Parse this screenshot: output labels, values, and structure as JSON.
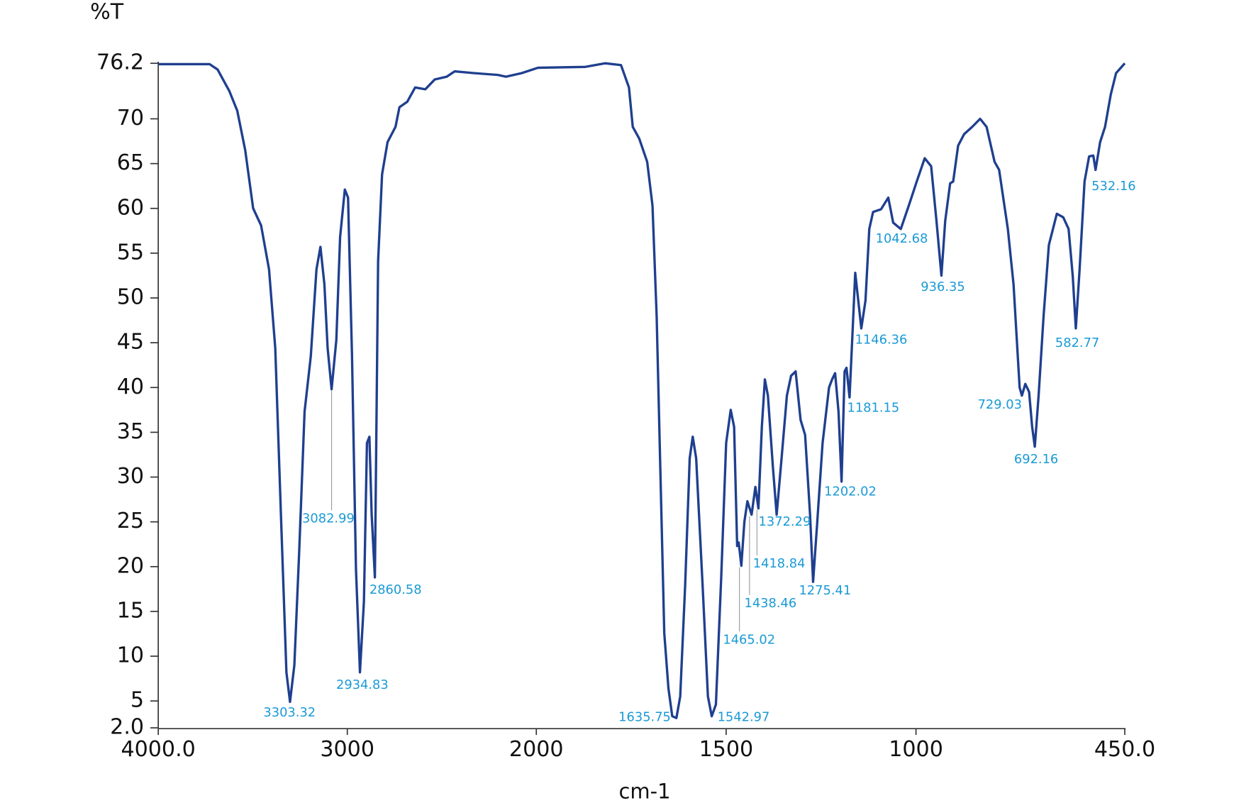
{
  "chart_data": {
    "type": "line",
    "y_axis_label": "%T",
    "x_axis_label": "cm-1",
    "xlim": [
      4000,
      450
    ],
    "ylim": [
      2,
      76.2
    ],
    "xticks": [
      {
        "value": 4000,
        "label": "4000.0"
      },
      3000,
      2000,
      1500,
      1000,
      {
        "value": 450,
        "label": "450.0"
      }
    ],
    "yticks": [
      {
        "value": 2,
        "label": "2.0"
      },
      5,
      10,
      15,
      20,
      25,
      30,
      35,
      40,
      45,
      50,
      55,
      60,
      65,
      70,
      76.2
    ],
    "series": [
      {
        "color": "#1f3f8f",
        "x": [
          4000,
          3728,
          3686,
          3624,
          3582,
          3540,
          3498,
          3456,
          3414,
          3381,
          3351,
          3322,
          3303,
          3280,
          3255,
          3226,
          3193,
          3163,
          3142,
          3121,
          3104,
          3083,
          3058,
          3038,
          3013,
          2996,
          2975,
          2954,
          2933,
          2912,
          2896,
          2883,
          2871,
          2854,
          2837,
          2816,
          2787,
          2745,
          2724,
          2683,
          2641,
          2587,
          2537,
          2474,
          2432,
          2328,
          2203,
          2161,
          2078,
          1996,
          1871,
          1819,
          1777,
          1756,
          1746,
          1729,
          1708,
          1694,
          1683,
          1673,
          1663,
          1652,
          1642,
          1631,
          1621,
          1608,
          1596,
          1588,
          1579,
          1562,
          1548,
          1538,
          1527,
          1513,
          1500,
          1488,
          1479,
          1471,
          1467,
          1460,
          1452,
          1444,
          1433,
          1423,
          1415,
          1406,
          1398,
          1390,
          1377,
          1367,
          1354,
          1340,
          1329,
          1317,
          1304,
          1292,
          1279,
          1271,
          1260,
          1246,
          1229,
          1221,
          1213,
          1204,
          1196,
          1188,
          1183,
          1175,
          1168,
          1160,
          1152,
          1144,
          1133,
          1123,
          1113,
          1092,
          1073,
          1060,
          1040,
          1019,
          998,
          977,
          960,
          946,
          933,
          923,
          910,
          902,
          889,
          873,
          852,
          831,
          814,
          793,
          781,
          758,
          743,
          727,
          721,
          712,
          702,
          694,
          687,
          677,
          664,
          650,
          629,
          612,
          598,
          587,
          579,
          569,
          556,
          544,
          533,
          527,
          515,
          502,
          487,
          473,
          450
        ],
        "values": [
          76.1,
          76.1,
          75.5,
          73.1,
          70.9,
          66.5,
          60.0,
          58.1,
          53.2,
          44.4,
          25.8,
          8.2,
          4.9,
          9.0,
          21.4,
          37.3,
          43.5,
          53.2,
          55.7,
          51.5,
          44.4,
          39.8,
          45.3,
          56.8,
          62.1,
          61.2,
          43.5,
          19.7,
          8.2,
          16.1,
          33.8,
          34.5,
          25.8,
          18.8,
          54.1,
          63.8,
          67.4,
          69.1,
          71.3,
          71.9,
          73.5,
          73.3,
          74.4,
          74.7,
          75.3,
          75.1,
          74.9,
          74.7,
          75.1,
          75.7,
          75.8,
          76.2,
          76.0,
          73.5,
          69.1,
          67.8,
          65.2,
          60.3,
          47.9,
          30.2,
          12.6,
          6.4,
          3.3,
          3.1,
          5.5,
          17.9,
          32.1,
          34.5,
          32.1,
          17.9,
          5.5,
          3.3,
          4.6,
          18.8,
          33.8,
          37.5,
          35.6,
          22.3,
          22.7,
          20.1,
          25.0,
          27.3,
          25.8,
          28.9,
          26.5,
          35.6,
          40.9,
          39.1,
          31.2,
          25.8,
          32.1,
          39.1,
          41.3,
          41.8,
          36.4,
          34.7,
          25.8,
          18.3,
          25.0,
          33.8,
          40.0,
          40.9,
          41.6,
          37.3,
          29.5,
          41.8,
          42.2,
          38.9,
          45.3,
          52.8,
          49.7,
          46.6,
          49.7,
          57.7,
          59.6,
          59.9,
          61.2,
          58.4,
          57.7,
          60.3,
          63.0,
          65.6,
          64.7,
          58.6,
          52.5,
          58.6,
          62.8,
          63.0,
          67.0,
          68.3,
          69.1,
          70.0,
          69.1,
          65.2,
          64.3,
          57.7,
          51.5,
          40.0,
          39.1,
          40.4,
          39.5,
          35.6,
          33.4,
          39.1,
          47.9,
          55.9,
          59.4,
          59.0,
          57.7,
          52.4,
          46.6,
          53.2,
          63.0,
          65.8,
          65.9,
          64.3,
          67.4,
          69.1,
          72.7,
          75.1,
          76.2
        ]
      }
    ],
    "peaks": [
      {
        "x": 3303.32,
        "y": 4.9
      },
      {
        "x": 3082.99,
        "y": 39.8
      },
      {
        "x": 2934.83,
        "y": 8.2
      },
      {
        "x": 2860.58,
        "y": 18.8
      },
      {
        "x": 1635.75,
        "y": 3.1
      },
      {
        "x": 1542.97,
        "y": 3.3
      },
      {
        "x": 1465.02,
        "y": 20.1
      },
      {
        "x": 1438.46,
        "y": 25.8
      },
      {
        "x": 1418.84,
        "y": 26.5
      },
      {
        "x": 1372.29,
        "y": 25.8
      },
      {
        "x": 1275.41,
        "y": 18.3
      },
      {
        "x": 1202.02,
        "y": 29.5
      },
      {
        "x": 1181.15,
        "y": 38.9
      },
      {
        "x": 1146.36,
        "y": 46.6
      },
      {
        "x": 1042.68,
        "y": 57.7
      },
      {
        "x": 936.35,
        "y": 52.5
      },
      {
        "x": 729.03,
        "y": 39.1
      },
      {
        "x": 692.16,
        "y": 33.4
      },
      {
        "x": 582.77,
        "y": 46.6
      },
      {
        "x": 532.16,
        "y": 64.3
      }
    ]
  }
}
